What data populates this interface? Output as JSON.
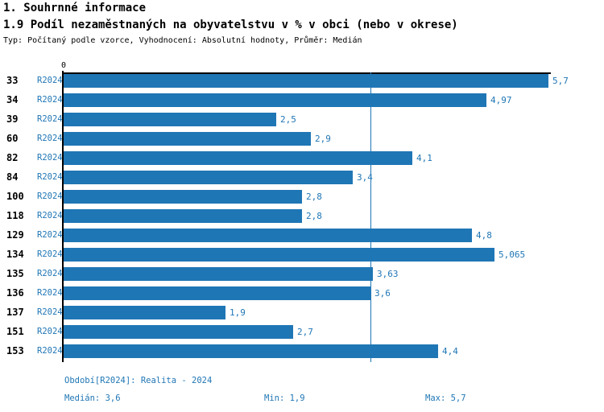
{
  "header": {
    "section_title": "1. Souhrnné informace",
    "chart_title": "1.9 Podíl nezaměstnaných na obyvatelstvu v % v obci (nebo v okrese)",
    "subtitle": "Typ: Počítaný podle vzorce, Vyhodnocení: Absolutní hodnoty, Průměr: Medián"
  },
  "chart_data": {
    "type": "bar",
    "orientation": "horizontal",
    "title": "1.9 Podíl nezaměstnaných na obyvatelstvu v % v obci (nebo v okrese)",
    "x_axis_ticks": [
      "0"
    ],
    "zero_label": "0",
    "xlim": [
      0,
      5.7
    ],
    "period_label": "R2024",
    "categories": [
      "33",
      "34",
      "39",
      "60",
      "82",
      "84",
      "100",
      "118",
      "129",
      "134",
      "135",
      "136",
      "137",
      "151",
      "153"
    ],
    "values": [
      5.7,
      4.97,
      2.5,
      2.9,
      4.1,
      3.4,
      2.8,
      2.8,
      4.8,
      5.065,
      3.63,
      3.6,
      1.9,
      2.7,
      4.4
    ],
    "value_labels": [
      "5,7",
      "4,97",
      "2,5",
      "2,9",
      "4,1",
      "3,4",
      "2,8",
      "2,8",
      "4,8",
      "5,065",
      "3,63",
      "3,6",
      "1,9",
      "2,7",
      "4,4"
    ],
    "median": 3.6,
    "median_line": true,
    "grid": false,
    "legend_position": "none",
    "bar_color": "#1f76b5",
    "axis_color": "#000000",
    "median_line_color": "#1f76b5"
  },
  "footer": {
    "period": "Období[R2024]: Realita - 2024",
    "median": "Medián: 3,6",
    "min": "Min: 1,9",
    "max": "Max: 5,7"
  }
}
